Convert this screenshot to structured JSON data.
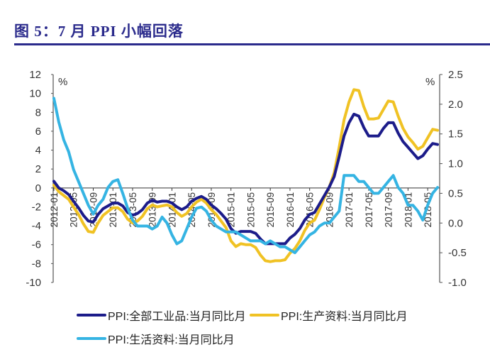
{
  "title": "图 5：7 月 PPI 小幅回落",
  "chart_data": {
    "type": "line",
    "title": "图 5：7 月 PPI 小幅回落",
    "left_axis": {
      "unit": "%",
      "ylim": [
        -10,
        12
      ],
      "ticks": [
        12,
        10,
        8,
        6,
        4,
        2,
        0,
        -2,
        -4,
        -6,
        -8,
        -10
      ]
    },
    "right_axis": {
      "unit": "%",
      "ylim": [
        -1.0,
        2.5
      ],
      "ticks": [
        "2.5",
        "2.0",
        "1.5",
        "1.0",
        "0.5",
        "0.0",
        "-0.5",
        "-1.0"
      ]
    },
    "x_start": "2012-01",
    "x_end": "2018-07",
    "x_tick_labels": [
      "2012-01",
      "2012-05",
      "2012-09",
      "2013-01",
      "2013-05",
      "2013-09",
      "2014-01",
      "2014-05",
      "2014-09",
      "2015-01",
      "2015-05",
      "2015-09",
      "2016-01",
      "2016-05",
      "2016-09",
      "2017-01",
      "2017-05",
      "2017-09",
      "2018-01",
      "2018-05"
    ],
    "grid": false,
    "legend_placement": "bottom",
    "series": [
      {
        "name": "PPI:全部工业品:当月同比月",
        "axis": "left",
        "color": "#1c1c8a",
        "values": [
          0.7,
          0.0,
          -0.3,
          -0.7,
          -1.4,
          -2.1,
          -2.9,
          -3.5,
          -3.6,
          -2.8,
          -2.2,
          -1.9,
          -1.6,
          -1.6,
          -1.9,
          -2.6,
          -2.9,
          -2.7,
          -2.3,
          -1.6,
          -1.3,
          -1.5,
          -1.4,
          -1.4,
          -1.6,
          -2.0,
          -2.3,
          -2.0,
          -1.4,
          -1.1,
          -0.9,
          -1.2,
          -1.8,
          -2.2,
          -2.7,
          -3.3,
          -4.3,
          -4.8,
          -4.6,
          -4.6,
          -4.6,
          -4.8,
          -5.4,
          -5.9,
          -5.9,
          -5.9,
          -5.9,
          -5.9,
          -5.3,
          -4.9,
          -4.3,
          -3.4,
          -2.8,
          -2.6,
          -1.7,
          -0.8,
          0.1,
          1.2,
          3.3,
          5.5,
          6.9,
          7.8,
          7.6,
          6.4,
          5.5,
          5.5,
          5.5,
          6.3,
          6.9,
          6.9,
          5.8,
          4.9,
          4.3,
          3.7,
          3.1,
          3.4,
          4.1,
          4.7,
          4.6
        ]
      },
      {
        "name": "PPI:生产资料:当月同比月",
        "axis": "left",
        "color": "#f0c224",
        "values": [
          0.3,
          -0.4,
          -0.8,
          -1.2,
          -2.0,
          -2.8,
          -3.8,
          -4.6,
          -4.7,
          -3.7,
          -2.9,
          -2.5,
          -2.1,
          -2.1,
          -2.5,
          -3.3,
          -3.7,
          -3.5,
          -3.0,
          -2.2,
          -1.8,
          -2.0,
          -1.9,
          -1.8,
          -2.0,
          -2.6,
          -3.0,
          -2.7,
          -2.0,
          -1.5,
          -1.2,
          -1.6,
          -2.3,
          -2.8,
          -3.5,
          -4.2,
          -5.6,
          -6.2,
          -5.9,
          -6.0,
          -6.0,
          -6.3,
          -7.1,
          -7.7,
          -7.8,
          -7.7,
          -7.7,
          -7.6,
          -6.9,
          -6.4,
          -5.6,
          -4.5,
          -3.7,
          -3.4,
          -2.3,
          -1.0,
          0.1,
          1.6,
          4.3,
          7.2,
          9.1,
          10.4,
          10.3,
          8.6,
          7.3,
          7.3,
          7.4,
          8.3,
          9.2,
          9.1,
          7.6,
          6.3,
          5.4,
          4.8,
          4.1,
          4.4,
          5.3,
          6.2,
          6.1
        ]
      },
      {
        "name": "PPI:生活资料:当月同比月",
        "axis": "right",
        "color": "#35b4e3",
        "values": [
          2.1,
          1.7,
          1.4,
          1.2,
          0.9,
          0.7,
          0.5,
          0.3,
          0.15,
          0.3,
          0.4,
          0.6,
          0.7,
          0.73,
          0.5,
          0.25,
          0.05,
          -0.05,
          -0.05,
          -0.05,
          -0.1,
          -0.05,
          0.1,
          0.0,
          -0.2,
          -0.35,
          -0.3,
          -0.1,
          0.1,
          0.25,
          0.27,
          0.2,
          0.05,
          -0.05,
          -0.1,
          -0.15,
          -0.15,
          -0.15,
          -0.2,
          -0.25,
          -0.3,
          -0.3,
          -0.3,
          -0.35,
          -0.3,
          -0.35,
          -0.4,
          -0.4,
          -0.45,
          -0.5,
          -0.4,
          -0.3,
          -0.2,
          -0.15,
          -0.05,
          0.0,
          0.0,
          0.1,
          0.2,
          0.8,
          0.8,
          0.8,
          0.7,
          0.7,
          0.6,
          0.5,
          0.5,
          0.6,
          0.7,
          0.8,
          0.6,
          0.5,
          0.3,
          0.3,
          0.2,
          0.05,
          0.3,
          0.5,
          0.6
        ]
      }
    ]
  }
}
